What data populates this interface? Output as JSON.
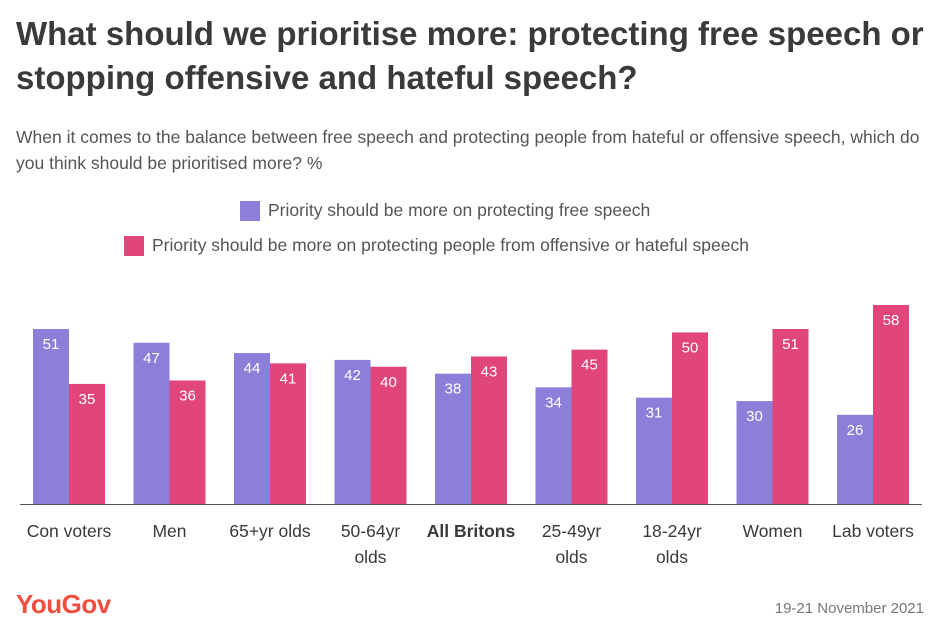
{
  "title": "What should we prioritise more: protecting free speech or stopping offensive and hateful speech?",
  "subtitle": "When it comes to the balance between free speech and protecting people from hateful or offensive speech, which do you think should be prioritised more? %",
  "brand": "YouGov",
  "date": "19-21 November 2021",
  "colors": {
    "free_speech": "#8c7fd9",
    "protecting": "#e0457b",
    "axis": "#555555"
  },
  "chart_data": {
    "type": "bar",
    "categories": [
      "Con voters",
      "Men",
      "65+yr olds",
      "50-64yr olds",
      "All Britons",
      "25-49yr olds",
      "18-24yr olds",
      "Women",
      "Lab voters"
    ],
    "category_lines": [
      [
        "Con voters"
      ],
      [
        "Men"
      ],
      [
        "65+yr olds"
      ],
      [
        "50-64yr",
        "olds"
      ],
      [
        "All Britons"
      ],
      [
        "25-49yr",
        "olds"
      ],
      [
        "18-24yr",
        "olds"
      ],
      [
        "Women"
      ],
      [
        "Lab voters"
      ]
    ],
    "bold_category": "All Britons",
    "series": [
      {
        "name": "Priority should be more on protecting free speech",
        "values": [
          51,
          47,
          44,
          42,
          38,
          34,
          31,
          30,
          26
        ]
      },
      {
        "name": "Priority should be more on protecting people from offensive or hateful speech",
        "values": [
          35,
          36,
          41,
          40,
          43,
          45,
          50,
          51,
          58
        ]
      }
    ],
    "ylim": [
      0,
      65
    ],
    "grid": false,
    "legend": "top-center"
  }
}
